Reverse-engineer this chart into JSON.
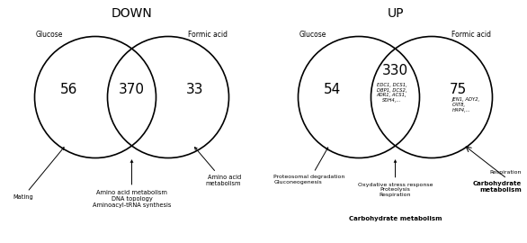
{
  "down_title": "DOWN",
  "up_title": "UP",
  "down_glucose_label": "Glucose",
  "down_formic_label": "Formic acid",
  "up_glucose_label": "Glucose",
  "up_formic_label": "Formic acid",
  "down_left_num": "56",
  "down_center_num": "370",
  "down_right_num": "33",
  "up_left_num": "54",
  "up_center_num": "330",
  "up_right_num": "75",
  "down_ann_left": "Mating",
  "down_ann_center": "Amino acid metabolism\nDNA topology\nAminoacyl-tRNA synthesis",
  "down_ann_right": "Amino acid\nmetabolism",
  "up_ann_left": "Proteosomal degradation\nGluconeogenesis",
  "up_ann_center_plain": "Oxydative stress response\nProteolysis\nRespiration",
  "up_ann_center_bold": "Carbohydrate metabolism",
  "up_ann_right_plain": "Respiration",
  "up_ann_right_bold": "Carbohydrate\nmetabolism",
  "up_center_genes": "EDC1, DCS1,\nDBP1, DCS2,\nADR1, ACS1,\nSDH4,...",
  "up_right_genes": "JEN1, ADY2,\nCAT8,\nHAP4,...",
  "bg_color": "#ffffff",
  "circle_color": "#000000",
  "text_color": "#000000",
  "circle_linewidth": 1.2
}
